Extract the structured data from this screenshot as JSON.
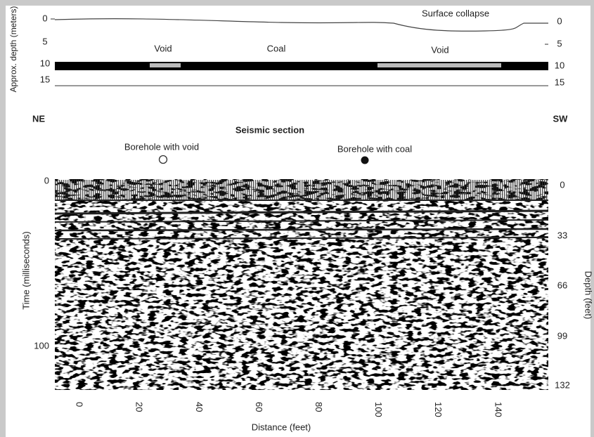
{
  "top_panel": {
    "y_label": "Approx. depth (meters)",
    "left_ticks": [
      0,
      5,
      10,
      15
    ],
    "right_ticks": [
      0,
      5,
      10,
      15
    ],
    "surface_label": "Surface collapse",
    "layer_labels": [
      "Void",
      "Coal",
      "Void"
    ]
  },
  "directions": {
    "left": "NE",
    "right": "SW"
  },
  "section": {
    "title": "Seismic section",
    "boreholes": [
      "Borehole with void",
      "Borehole with coal"
    ],
    "y_label": "Time (milliseconds)",
    "y_ticks": [
      0,
      100
    ],
    "y2_label": "Depth (feet)",
    "y2_ticks": [
      0,
      33,
      66,
      99,
      132
    ],
    "x_label": "Distance (feet)",
    "x_ticks": [
      0,
      20,
      40,
      60,
      80,
      100,
      120,
      140
    ]
  }
}
